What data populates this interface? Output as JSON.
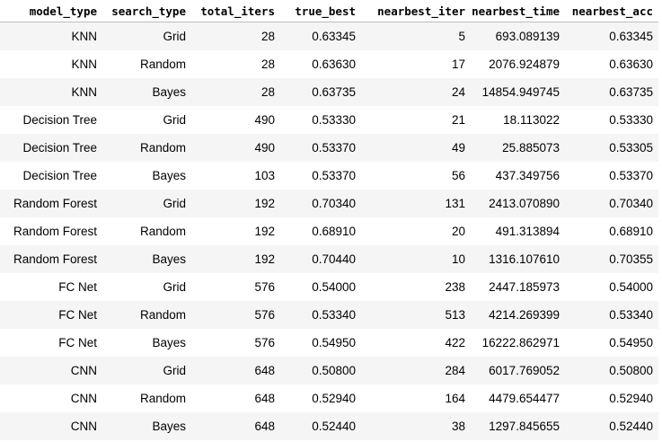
{
  "table": {
    "columns": [
      "model_type",
      "search_type",
      "total_iters",
      "true_best",
      "nearbest_iter",
      "nearbest_time",
      "nearbest_acc"
    ],
    "rows": [
      [
        "KNN",
        "Grid",
        "28",
        "0.63345",
        "5",
        "693.089139",
        "0.63345"
      ],
      [
        "KNN",
        "Random",
        "28",
        "0.63630",
        "17",
        "2076.924879",
        "0.63630"
      ],
      [
        "KNN",
        "Bayes",
        "28",
        "0.63735",
        "24",
        "14854.949745",
        "0.63735"
      ],
      [
        "Decision Tree",
        "Grid",
        "490",
        "0.53330",
        "21",
        "18.113022",
        "0.53330"
      ],
      [
        "Decision Tree",
        "Random",
        "490",
        "0.53370",
        "49",
        "25.885073",
        "0.53305"
      ],
      [
        "Decision Tree",
        "Bayes",
        "103",
        "0.53370",
        "56",
        "437.349756",
        "0.53370"
      ],
      [
        "Random Forest",
        "Grid",
        "192",
        "0.70340",
        "131",
        "2413.070890",
        "0.70340"
      ],
      [
        "Random Forest",
        "Random",
        "192",
        "0.68910",
        "20",
        "491.313894",
        "0.68910"
      ],
      [
        "Random Forest",
        "Bayes",
        "192",
        "0.70440",
        "10",
        "1316.107610",
        "0.70355"
      ],
      [
        "FC Net",
        "Grid",
        "576",
        "0.54000",
        "238",
        "2447.185973",
        "0.54000"
      ],
      [
        "FC Net",
        "Random",
        "576",
        "0.53340",
        "513",
        "4214.269399",
        "0.53340"
      ],
      [
        "FC Net",
        "Bayes",
        "576",
        "0.54950",
        "422",
        "16222.862971",
        "0.54950"
      ],
      [
        "CNN",
        "Grid",
        "648",
        "0.50800",
        "284",
        "6017.769052",
        "0.50800"
      ],
      [
        "CNN",
        "Random",
        "648",
        "0.52940",
        "164",
        "4479.654477",
        "0.52940"
      ],
      [
        "CNN",
        "Bayes",
        "648",
        "0.52440",
        "38",
        "1297.845655",
        "0.52440"
      ]
    ]
  }
}
